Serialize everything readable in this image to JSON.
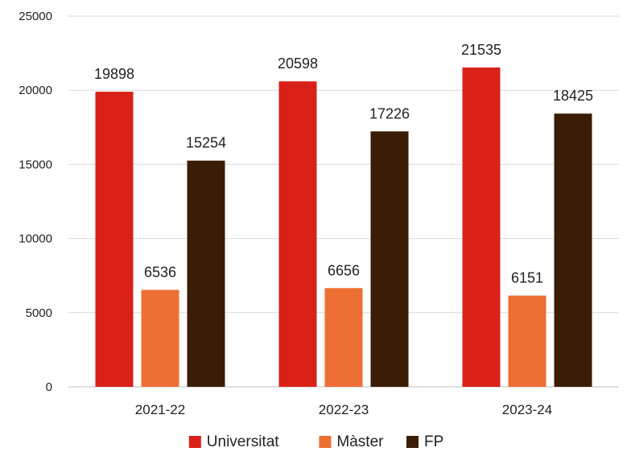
{
  "chart_data": {
    "type": "bar",
    "title": "",
    "xlabel": "",
    "ylabel": "",
    "categories": [
      "2021-22",
      "2022-23",
      "2023-24"
    ],
    "series": [
      {
        "name": "Universitat",
        "color": "#d92119",
        "values": [
          19898,
          20598,
          21535
        ]
      },
      {
        "name": "Màster",
        "color": "#ed6f33",
        "values": [
          6536,
          6656,
          6151
        ]
      },
      {
        "name": "FP",
        "color": "#3a1c07",
        "values": [
          15254,
          17226,
          18425
        ]
      }
    ],
    "ylim": [
      0,
      25000
    ],
    "yticks": [
      0,
      5000,
      10000,
      15000,
      20000,
      25000
    ],
    "ytick_labels": [
      "0",
      "5000",
      "10000",
      "15000",
      "20000",
      "25000"
    ],
    "grid": true,
    "legend": "bottom",
    "data_labels": true
  }
}
